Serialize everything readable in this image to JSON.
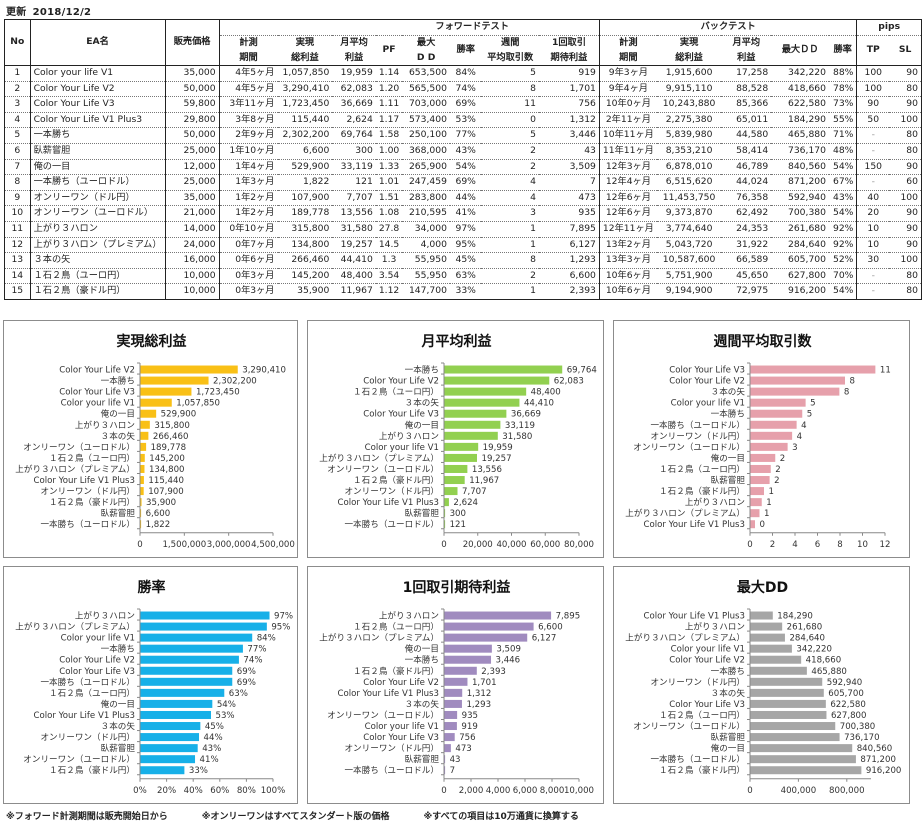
{
  "header": {
    "updated_label": "更新",
    "updated_date": "2018/12/2"
  },
  "table": {
    "group_headers": {
      "forward": "フォワードテスト",
      "backtest": "バックテスト",
      "pips": "pips"
    },
    "columns": {
      "no": "No",
      "ea_name": "EA名",
      "price": "販売価格",
      "fw_period": [
        "計測",
        "期間"
      ],
      "fw_total": [
        "実現",
        "総利益"
      ],
      "fw_monthly": [
        "月平均",
        "利益"
      ],
      "fw_pf": "PF",
      "fw_maxdd": [
        "最大",
        "D D"
      ],
      "fw_winrate": "勝率",
      "fw_weekly": [
        "週間",
        "平均取引数"
      ],
      "fw_expect": [
        "1回取引",
        "期待利益"
      ],
      "bt_period": [
        "計測",
        "期間"
      ],
      "bt_total": [
        "実現",
        "総利益"
      ],
      "bt_monthly": [
        "月平均",
        "利益"
      ],
      "bt_maxdd": "最大ＤＤ",
      "bt_winrate": "勝率",
      "tp": "TP",
      "sl": "SL"
    },
    "rows": [
      {
        "no": "1",
        "name": "Color your life V1",
        "price": "35,000",
        "fw_period": "4年5ヶ月",
        "fw_total": "1,057,850",
        "fw_monthly": "19,959",
        "pf": "1.14",
        "fw_dd": "653,500",
        "fw_win": "84%",
        "weekly": "5",
        "expect": "919",
        "bt_period": "9年3ヶ月",
        "bt_total": "1,915,600",
        "bt_monthly": "17,258",
        "bt_dd": "342,220",
        "bt_win": "88%",
        "tp": "100",
        "sl": "90"
      },
      {
        "no": "2",
        "name": "Color Your Life V2",
        "price": "50,000",
        "fw_period": "4年5ヶ月",
        "fw_total": "3,290,410",
        "fw_monthly": "62,083",
        "pf": "1.20",
        "fw_dd": "565,500",
        "fw_win": "74%",
        "weekly": "8",
        "expect": "1,701",
        "bt_period": "9年4ヶ月",
        "bt_total": "9,915,110",
        "bt_monthly": "88,528",
        "bt_dd": "418,660",
        "bt_win": "78%",
        "tp": "100",
        "sl": "80"
      },
      {
        "no": "3",
        "name": "Color Your Life V3",
        "price": "59,800",
        "fw_period": "3年11ヶ月",
        "fw_total": "1,723,450",
        "fw_monthly": "36,669",
        "pf": "1.11",
        "fw_dd": "703,000",
        "fw_win": "69%",
        "weekly": "11",
        "expect": "756",
        "bt_period": "10年0ヶ月",
        "bt_total": "10,243,880",
        "bt_monthly": "85,366",
        "bt_dd": "622,580",
        "bt_win": "73%",
        "tp": "90",
        "sl": "90"
      },
      {
        "no": "4",
        "name": "Color Your Life V1 Plus3",
        "price": "29,800",
        "fw_period": "3年8ヶ月",
        "fw_total": "115,440",
        "fw_monthly": "2,624",
        "pf": "1.17",
        "fw_dd": "573,400",
        "fw_win": "53%",
        "weekly": "0",
        "expect": "1,312",
        "bt_period": "2年11ヶ月",
        "bt_total": "2,275,380",
        "bt_monthly": "65,011",
        "bt_dd": "184,290",
        "bt_win": "55%",
        "tp": "50",
        "sl": "100"
      },
      {
        "no": "5",
        "name": "一本勝ち",
        "price": "50,000",
        "fw_period": "2年9ヶ月",
        "fw_total": "2,302,200",
        "fw_monthly": "69,764",
        "pf": "1.58",
        "fw_dd": "250,100",
        "fw_win": "77%",
        "weekly": "5",
        "expect": "3,446",
        "bt_period": "10年11ヶ月",
        "bt_total": "5,839,980",
        "bt_monthly": "44,580",
        "bt_dd": "465,880",
        "bt_win": "71%",
        "tp": "-",
        "sl": "80"
      },
      {
        "no": "6",
        "name": "臥薪嘗胆",
        "price": "25,000",
        "fw_period": "1年10ヶ月",
        "fw_total": "6,600",
        "fw_monthly": "300",
        "pf": "1.00",
        "fw_dd": "368,000",
        "fw_win": "43%",
        "weekly": "2",
        "expect": "43",
        "bt_period": "11年11ヶ月",
        "bt_total": "8,353,210",
        "bt_monthly": "58,414",
        "bt_dd": "736,170",
        "bt_win": "48%",
        "tp": "-",
        "sl": "80"
      },
      {
        "no": "7",
        "name": "俺の一目",
        "price": "12,000",
        "fw_period": "1年4ヶ月",
        "fw_total": "529,900",
        "fw_monthly": "33,119",
        "pf": "1.33",
        "fw_dd": "265,900",
        "fw_win": "54%",
        "weekly": "2",
        "expect": "3,509",
        "bt_period": "12年3ヶ月",
        "bt_total": "6,878,010",
        "bt_monthly": "46,789",
        "bt_dd": "840,560",
        "bt_win": "54%",
        "tp": "150",
        "sl": "90"
      },
      {
        "no": "8",
        "name": "一本勝ち（ユーロドル）",
        "price": "25,000",
        "fw_period": "1年3ヶ月",
        "fw_total": "1,822",
        "fw_monthly": "121",
        "pf": "1.01",
        "fw_dd": "247,459",
        "fw_win": "69%",
        "weekly": "4",
        "expect": "7",
        "bt_period": "12年4ヶ月",
        "bt_total": "6,515,620",
        "bt_monthly": "44,024",
        "bt_dd": "871,200",
        "bt_win": "67%",
        "tp": "-",
        "sl": "60"
      },
      {
        "no": "9",
        "name": "オンリーワン（ドル円）",
        "price": "35,000",
        "fw_period": "1年2ヶ月",
        "fw_total": "107,900",
        "fw_monthly": "7,707",
        "pf": "1.51",
        "fw_dd": "283,800",
        "fw_win": "44%",
        "weekly": "4",
        "expect": "473",
        "bt_period": "12年6ヶ月",
        "bt_total": "11,453,750",
        "bt_monthly": "76,358",
        "bt_dd": "592,940",
        "bt_win": "43%",
        "tp": "40",
        "sl": "100"
      },
      {
        "no": "10",
        "name": "オンリーワン（ユーロドル）",
        "price": "21,000",
        "fw_period": "1年2ヶ月",
        "fw_total": "189,778",
        "fw_monthly": "13,556",
        "pf": "1.08",
        "fw_dd": "210,595",
        "fw_win": "41%",
        "weekly": "3",
        "expect": "935",
        "bt_period": "12年6ヶ月",
        "bt_total": "9,373,870",
        "bt_monthly": "62,492",
        "bt_dd": "700,380",
        "bt_win": "54%",
        "tp": "20",
        "sl": "90"
      },
      {
        "no": "11",
        "name": "上がり３ハロン",
        "price": "14,000",
        "fw_period": "0年10ヶ月",
        "fw_total": "315,800",
        "fw_monthly": "31,580",
        "pf": "27.8",
        "fw_dd": "34,000",
        "fw_win": "97%",
        "weekly": "1",
        "expect": "7,895",
        "bt_period": "12年11ヶ月",
        "bt_total": "3,774,640",
        "bt_monthly": "24,353",
        "bt_dd": "261,680",
        "bt_win": "92%",
        "tp": "10",
        "sl": "90"
      },
      {
        "no": "12",
        "name": "上がり３ハロン（プレミアム）",
        "price": "24,000",
        "fw_period": "0年7ヶ月",
        "fw_total": "134,800",
        "fw_monthly": "19,257",
        "pf": "14.5",
        "fw_dd": "4,000",
        "fw_win": "95%",
        "weekly": "1",
        "expect": "6,127",
        "bt_period": "13年2ヶ月",
        "bt_total": "5,043,720",
        "bt_monthly": "31,922",
        "bt_dd": "284,640",
        "bt_win": "92%",
        "tp": "10",
        "sl": "90"
      },
      {
        "no": "13",
        "name": "３本の矢",
        "price": "16,000",
        "fw_period": "0年6ヶ月",
        "fw_total": "266,460",
        "fw_monthly": "44,410",
        "pf": "1.3",
        "fw_dd": "55,950",
        "fw_win": "45%",
        "weekly": "8",
        "expect": "1,293",
        "bt_period": "13年3ヶ月",
        "bt_total": "10,587,600",
        "bt_monthly": "66,589",
        "bt_dd": "605,700",
        "bt_win": "52%",
        "tp": "30",
        "sl": "100"
      },
      {
        "no": "14",
        "name": "１石２鳥（ユーロ円）",
        "price": "10,000",
        "fw_period": "0年3ヶ月",
        "fw_total": "145,200",
        "fw_monthly": "48,400",
        "pf": "3.54",
        "fw_dd": "55,950",
        "fw_win": "63%",
        "weekly": "2",
        "expect": "6,600",
        "bt_period": "10年6ヶ月",
        "bt_total": "5,751,900",
        "bt_monthly": "45,650",
        "bt_dd": "627,800",
        "bt_win": "70%",
        "tp": "-",
        "sl": "80"
      },
      {
        "no": "15",
        "name": "１石２鳥（豪ドル円）",
        "price": "10,000",
        "fw_period": "0年3ヶ月",
        "fw_total": "35,900",
        "fw_monthly": "11,967",
        "pf": "1.12",
        "fw_dd": "147,700",
        "fw_win": "33%",
        "weekly": "1",
        "expect": "2,393",
        "bt_period": "10年6ヶ月",
        "bt_total": "9,194,900",
        "bt_monthly": "72,975",
        "bt_dd": "916,200",
        "bt_win": "54%",
        "tp": "-",
        "sl": "80"
      }
    ]
  },
  "chart_data": [
    {
      "type": "bar",
      "orientation": "horizontal",
      "title": "実現総利益",
      "color": "#f9c016",
      "categories": [
        "Color Your Life V2",
        "一本勝ち",
        "Color Your Life V3",
        "Color your life V1",
        "俺の一目",
        "上がり３ハロン",
        "３本の矢",
        "オンリーワン（ユーロドル）",
        "１石２鳥（ユーロ円）",
        "上がり３ハロン（プレミアム）",
        "Color Your Life V1 Plus3",
        "オンリーワン（ドル円）",
        "１石２鳥（豪ドル円）",
        "臥薪嘗胆",
        "一本勝ち（ユーロドル）"
      ],
      "values": [
        3290410,
        2302200,
        1723450,
        1057850,
        529900,
        315800,
        266460,
        189778,
        145200,
        134800,
        115440,
        107900,
        35900,
        6600,
        1822
      ],
      "labels": [
        "3,290,410",
        "2,302,200",
        "1,723,450",
        "1,057,850",
        "529,900",
        "315,800",
        "266,460",
        "189,778",
        "145,200",
        "134,800",
        "115,440",
        "107,900",
        "35,900",
        "6,600",
        "1,822"
      ],
      "xlim": [
        0,
        4500000
      ],
      "ticks": [
        0,
        1500000,
        3000000,
        4500000
      ],
      "tick_labels": [
        "0",
        "1,500,000",
        "3,000,000",
        "4,500,000"
      ],
      "grid": false,
      "legend": "none"
    },
    {
      "type": "bar",
      "orientation": "horizontal",
      "title": "月平均利益",
      "color": "#92d050",
      "categories": [
        "一本勝ち",
        "Color Your Life V2",
        "１石２鳥（ユーロ円）",
        "３本の矢",
        "Color Your Life V3",
        "俺の一目",
        "上がり３ハロン",
        "Color your life V1",
        "上がり３ハロン（プレミアム）",
        "オンリーワン（ユーロドル）",
        "１石２鳥（豪ドル円）",
        "オンリーワン（ドル円）",
        "Color Your Life V1 Plus3",
        "臥薪嘗胆",
        "一本勝ち（ユーロドル）"
      ],
      "values": [
        69764,
        62083,
        48400,
        44410,
        36669,
        33119,
        31580,
        19959,
        19257,
        13556,
        11967,
        7707,
        2624,
        300,
        121
      ],
      "labels": [
        "69,764",
        "62,083",
        "48,400",
        "44,410",
        "36,669",
        "33,119",
        "31,580",
        "19,959",
        "19,257",
        "13,556",
        "11,967",
        "7,707",
        "2,624",
        "300",
        "121"
      ],
      "xlim": [
        0,
        80000
      ],
      "ticks": [
        0,
        20000,
        40000,
        60000,
        80000
      ],
      "tick_labels": [
        "0",
        "20,000",
        "40,000",
        "60,000",
        "80,000"
      ],
      "grid": false,
      "legend": "none"
    },
    {
      "type": "bar",
      "orientation": "horizontal",
      "title": "週間平均取引数",
      "color": "#e6a0ab",
      "categories": [
        "Color Your Life V3",
        "Color Your Life V2",
        "３本の矢",
        "Color your life V1",
        "一本勝ち",
        "一本勝ち（ユーロドル）",
        "オンリーワン（ドル円）",
        "オンリーワン（ユーロドル）",
        "俺の一目",
        "１石２鳥（ユーロ円）",
        "臥薪嘗胆",
        "１石２鳥（豪ドル円）",
        "上がり３ハロン",
        "上がり３ハロン（プレミアム）",
        "Color Your Life V1 Plus3"
      ],
      "values": [
        11.1,
        8.4,
        7.9,
        4.9,
        4.6,
        4.1,
        3.7,
        3.3,
        2.2,
        1.8,
        1.7,
        1.2,
        1.0,
        0.8,
        0.4
      ],
      "labels": [
        "11",
        "8",
        "8",
        "5",
        "5",
        "4",
        "4",
        "3",
        "2",
        "2",
        "2",
        "1",
        "1",
        "1",
        "0"
      ],
      "xlim": [
        0,
        12
      ],
      "ticks": [
        0,
        2,
        4,
        6,
        8,
        10,
        12
      ],
      "tick_labels": [
        "0",
        "2",
        "4",
        "6",
        "8",
        "10",
        "12"
      ],
      "grid": false,
      "legend": "none"
    },
    {
      "type": "bar",
      "orientation": "horizontal",
      "title": "勝率",
      "color": "#17b0e8",
      "categories": [
        "上がり３ハロン",
        "上がり３ハロン（プレミアム）",
        "Color your life V1",
        "一本勝ち",
        "Color Your Life V2",
        "Color Your Life V3",
        "一本勝ち（ユーロドル）",
        "１石２鳥（ユーロ円）",
        "俺の一目",
        "Color Your Life V1 Plus3",
        "３本の矢",
        "オンリーワン（ドル円）",
        "臥薪嘗胆",
        "オンリーワン（ユーロドル）",
        "１石２鳥（豪ドル円）"
      ],
      "values": [
        97,
        95,
        84,
        77,
        74,
        69,
        69,
        63,
        54,
        53,
        45,
        44,
        43,
        41,
        33
      ],
      "labels": [
        "97%",
        "95%",
        "84%",
        "77%",
        "74%",
        "69%",
        "69%",
        "63%",
        "54%",
        "53%",
        "45%",
        "44%",
        "43%",
        "41%",
        "33%"
      ],
      "xlim": [
        0,
        100
      ],
      "ticks": [
        0,
        20,
        40,
        60,
        80,
        100
      ],
      "tick_labels": [
        "0%",
        "20%",
        "40%",
        "60%",
        "80%",
        "100%"
      ],
      "grid": false,
      "legend": "none"
    },
    {
      "type": "bar",
      "orientation": "horizontal",
      "title": "1回取引期待利益",
      "color": "#a08bbf",
      "categories": [
        "上がり３ハロン",
        "１石２鳥（ユーロ円）",
        "上がり３ハロン（プレミアム）",
        "俺の一目",
        "一本勝ち",
        "１石２鳥（豪ドル円）",
        "Color Your Life V2",
        "Color Your Life V1 Plus3",
        "３本の矢",
        "オンリーワン（ユーロドル）",
        "Color your life V1",
        "Color Your Life V3",
        "オンリーワン（ドル円）",
        "臥薪嘗胆",
        "一本勝ち（ユーロドル）"
      ],
      "values": [
        7895,
        6600,
        6127,
        3509,
        3446,
        2393,
        1701,
        1312,
        1293,
        935,
        919,
        756,
        473,
        43,
        7
      ],
      "labels": [
        "7,895",
        "6,600",
        "6,127",
        "3,509",
        "3,446",
        "2,393",
        "1,701",
        "1,312",
        "1,293",
        "935",
        "919",
        "756",
        "473",
        "43",
        "7"
      ],
      "xlim": [
        0,
        10000
      ],
      "ticks": [
        0,
        2000,
        4000,
        6000,
        8000,
        10000
      ],
      "tick_labels": [
        "0",
        "2,000",
        "4,000",
        "6,000",
        "8,000",
        "10,000"
      ],
      "grid": false,
      "legend": "none"
    },
    {
      "type": "bar",
      "orientation": "horizontal",
      "title": "最大DD",
      "color": "#a6a6a6",
      "categories": [
        "Color Your Life V1 Plus3",
        "上がり３ハロン",
        "上がり３ハロン（プレミアム）",
        "Color your life V1",
        "Color Your Life V2",
        "一本勝ち",
        "オンリーワン（ドル円）",
        "３本の矢",
        "Color Your Life V3",
        "１石２鳥（ユーロ円）",
        "オンリーワン（ユーロドル）",
        "臥薪嘗胆",
        "俺の一目",
        "一本勝ち（ユーロドル）",
        "１石２鳥（豪ドル円）"
      ],
      "values": [
        184290,
        261680,
        284640,
        342220,
        418660,
        465880,
        592940,
        605700,
        622580,
        627800,
        700380,
        736170,
        840560,
        871200,
        916200
      ],
      "labels": [
        "184,290",
        "261,680",
        "284,640",
        "342,220",
        "418,660",
        "465,880",
        "592,940",
        "605,700",
        "622,580",
        "627,800",
        "700,380",
        "736,170",
        "840,560",
        "871,200",
        "916,200"
      ],
      "xlim": [
        0,
        1000000
      ],
      "ticks": [
        0,
        400000,
        800000
      ],
      "tick_labels": [
        "0",
        "400,000",
        "800,000"
      ],
      "grid": false,
      "legend": "none"
    }
  ],
  "footnotes": [
    "※フォワード計測期間は販売開始日から",
    "※オンリーワンはすべてスタンダート版の価格",
    "※すべての項目は10万通貨に換算する"
  ]
}
